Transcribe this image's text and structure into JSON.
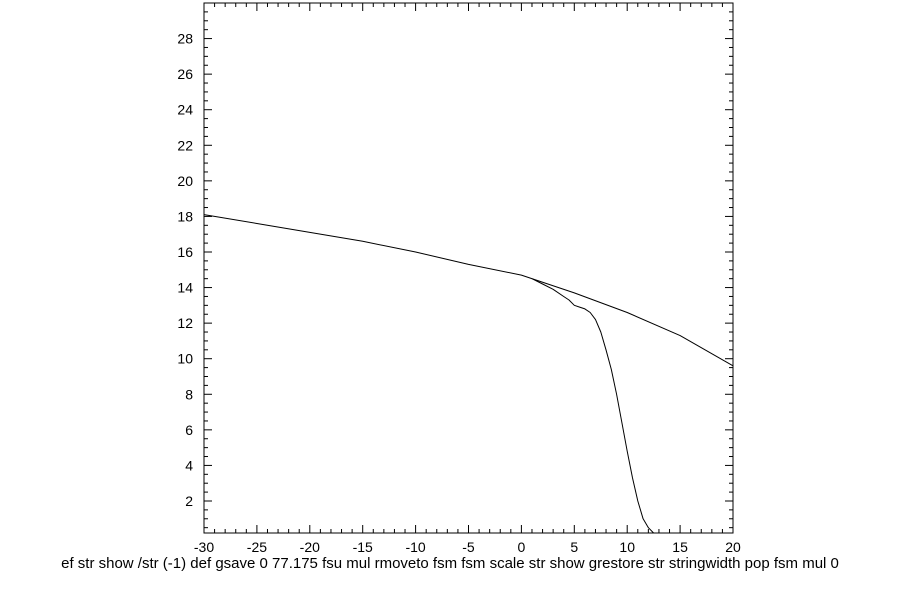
{
  "chart_data": {
    "type": "line",
    "title": "",
    "xlabel": "ef str show /str (-1) def gsave 0 77.175 fsu mul rmoveto fsm fsm scale str show grestore str stringwidth pop fsm mul 0",
    "ylabel": "",
    "xlim": [
      -30,
      20
    ],
    "ylim": [
      0.2,
      30
    ],
    "grid": false,
    "x_ticks": [
      "-30",
      "-25",
      "-20",
      "-15",
      "-10",
      "-5",
      "0",
      "5",
      "10",
      "15",
      "20"
    ],
    "y_ticks": [
      "2",
      "4",
      "6",
      "8",
      "10",
      "12",
      "14",
      "16",
      "18",
      "20",
      "22",
      "24",
      "26",
      "28"
    ],
    "series": [
      {
        "x": [
          -30,
          -25,
          -20,
          -15,
          -10,
          -5,
          0,
          5,
          10,
          15,
          20
        ],
        "y": [
          18.1,
          17.6,
          17.1,
          16.6,
          16.0,
          15.3,
          14.7,
          13.7,
          12.6,
          11.3,
          9.6
        ]
      },
      {
        "x": [
          1,
          2,
          3,
          4,
          4.5,
          5,
          5.5,
          6,
          6.5,
          7,
          7.5,
          8,
          8.5,
          9,
          9.5,
          10,
          10.5,
          11,
          11.5,
          12,
          12.5
        ],
        "y": [
          14.5,
          14.2,
          13.9,
          13.5,
          13.3,
          13.0,
          12.9,
          12.8,
          12.6,
          12.2,
          11.5,
          10.5,
          9.4,
          8.0,
          6.4,
          4.8,
          3.3,
          2.0,
          1.0,
          0.5,
          0.2
        ]
      }
    ]
  }
}
